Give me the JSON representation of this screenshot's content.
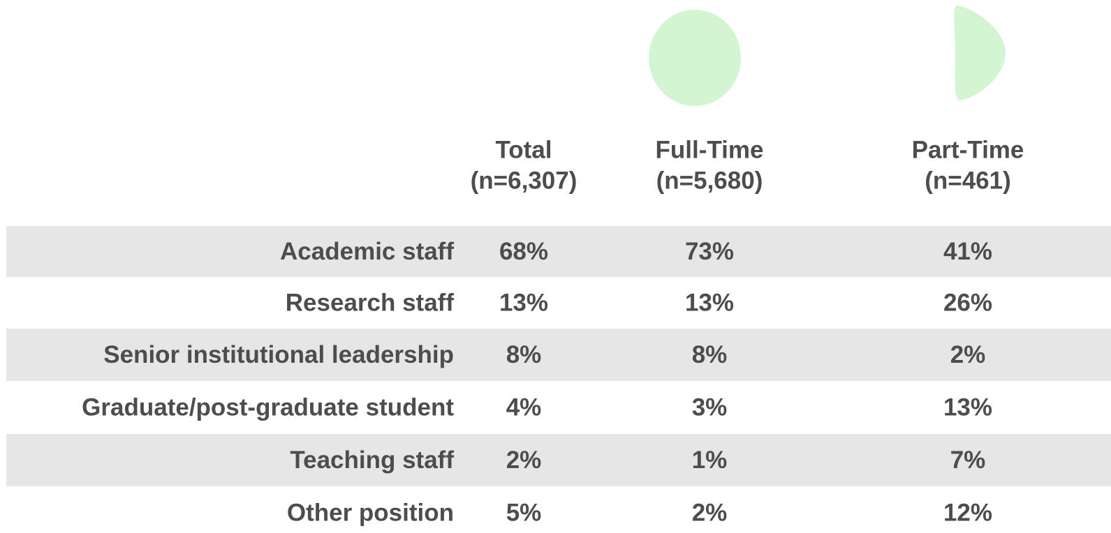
{
  "table": {
    "columns": [
      {
        "label": "Total",
        "n": "(n=6,307)"
      },
      {
        "label": "Full-Time",
        "n": "(n=5,680)"
      },
      {
        "label": "Part-Time",
        "n": "(n=461)"
      }
    ],
    "rows": [
      {
        "label": "Academic staff",
        "cells": [
          "68%",
          "73%",
          "41%"
        ]
      },
      {
        "label": "Research staff",
        "cells": [
          "13%",
          "13%",
          "26%"
        ]
      },
      {
        "label": "Senior institutional leadership",
        "cells": [
          "8%",
          "8%",
          "2%"
        ]
      },
      {
        "label": "Graduate/post-graduate student",
        "cells": [
          "4%",
          "3%",
          "13%"
        ]
      },
      {
        "label": "Teaching staff",
        "cells": [
          "2%",
          "1%",
          "7%"
        ]
      },
      {
        "label": "Other position",
        "cells": [
          "5%",
          "2%",
          "12%"
        ]
      }
    ]
  }
}
